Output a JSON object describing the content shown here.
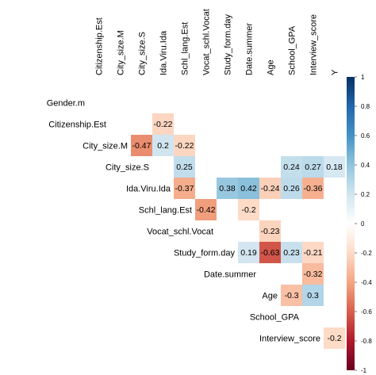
{
  "chart_data": {
    "type": "heatmap",
    "title": "",
    "columns": [
      "Citizenship.Est",
      "City_size.M",
      "City_size.S",
      "Ida.Viru.Ida",
      "Schl_lang.Est",
      "Vocat_schl.Vocat",
      "Study_form.day",
      "Date.summer",
      "Age",
      "School_GPA",
      "Interview_score",
      "Y"
    ],
    "rows": [
      "Gender.m",
      "Citizenship.Est",
      "City_size.M",
      "City_size.S",
      "Ida.Viru.Ida",
      "Schl_lang.Est",
      "Vocat_schl.Vocat",
      "Study_form.day",
      "Date.summer",
      "Age",
      "School_GPA",
      "Interview_score"
    ],
    "cells": [
      {
        "row": "Citizenship.Est",
        "col": "Ida.Viru.Ida",
        "value": -0.22,
        "label": "-0.22"
      },
      {
        "row": "City_size.M",
        "col": "City_size.S",
        "value": -0.47,
        "label": "-0.47"
      },
      {
        "row": "City_size.M",
        "col": "Ida.Viru.Ida",
        "value": 0.2,
        "label": "0.2"
      },
      {
        "row": "City_size.M",
        "col": "Schl_lang.Est",
        "value": -0.22,
        "label": "-0.22"
      },
      {
        "row": "City_size.S",
        "col": "Schl_lang.Est",
        "value": 0.25,
        "label": "0.25"
      },
      {
        "row": "City_size.S",
        "col": "School_GPA",
        "value": 0.24,
        "label": "0.24"
      },
      {
        "row": "City_size.S",
        "col": "Interview_score",
        "value": 0.27,
        "label": "0.27"
      },
      {
        "row": "City_size.S",
        "col": "Y",
        "value": 0.18,
        "label": "0.18"
      },
      {
        "row": "Ida.Viru.Ida",
        "col": "Schl_lang.Est",
        "value": -0.37,
        "label": "-0.37"
      },
      {
        "row": "Ida.Viru.Ida",
        "col": "Study_form.day",
        "value": 0.38,
        "label": "0.38"
      },
      {
        "row": "Ida.Viru.Ida",
        "col": "Date.summer",
        "value": 0.42,
        "label": "0.42"
      },
      {
        "row": "Ida.Viru.Ida",
        "col": "Age",
        "value": -0.24,
        "label": "-0.24"
      },
      {
        "row": "Ida.Viru.Ida",
        "col": "School_GPA",
        "value": 0.26,
        "label": "0.26"
      },
      {
        "row": "Ida.Viru.Ida",
        "col": "Interview_score",
        "value": -0.36,
        "label": "-0.36"
      },
      {
        "row": "Schl_lang.Est",
        "col": "Vocat_schl.Vocat",
        "value": -0.42,
        "label": "-0.42"
      },
      {
        "row": "Schl_lang.Est",
        "col": "Date.summer",
        "value": -0.2,
        "label": "-0.2"
      },
      {
        "row": "Vocat_schl.Vocat",
        "col": "Age",
        "value": -0.23,
        "label": "-0.23"
      },
      {
        "row": "Study_form.day",
        "col": "Date.summer",
        "value": 0.19,
        "label": "0.19"
      },
      {
        "row": "Study_form.day",
        "col": "Age",
        "value": -0.63,
        "label": "-0.63"
      },
      {
        "row": "Study_form.day",
        "col": "School_GPA",
        "value": 0.23,
        "label": "0.23"
      },
      {
        "row": "Study_form.day",
        "col": "Interview_score",
        "value": -0.21,
        "label": "-0.21"
      },
      {
        "row": "Date.summer",
        "col": "Interview_score",
        "value": -0.32,
        "label": "-0.32"
      },
      {
        "row": "Age",
        "col": "School_GPA",
        "value": -0.3,
        "label": "-0.3"
      },
      {
        "row": "Age",
        "col": "Interview_score",
        "value": 0.3,
        "label": "0.3"
      },
      {
        "row": "Interview_score",
        "col": "Y",
        "value": -0.2,
        "label": "-0.2"
      }
    ],
    "colorbar": {
      "range": [
        -1,
        1
      ],
      "ticks": [
        1,
        0.8,
        0.6,
        0.4,
        0.2,
        0,
        -0.2,
        -0.4,
        -0.6,
        -0.8,
        -1
      ],
      "tick_labels": [
        "1",
        "0.8",
        "0.6",
        "0.4",
        "0.2",
        "0",
        "-0.2",
        "-0.4",
        "-0.6",
        "-0.8",
        "-1"
      ],
      "colors": {
        "negative": "#67001f",
        "neutral": "#ffffff",
        "positive": "#053061"
      }
    },
    "value_label_color": "#000000",
    "legend_position": "right"
  }
}
